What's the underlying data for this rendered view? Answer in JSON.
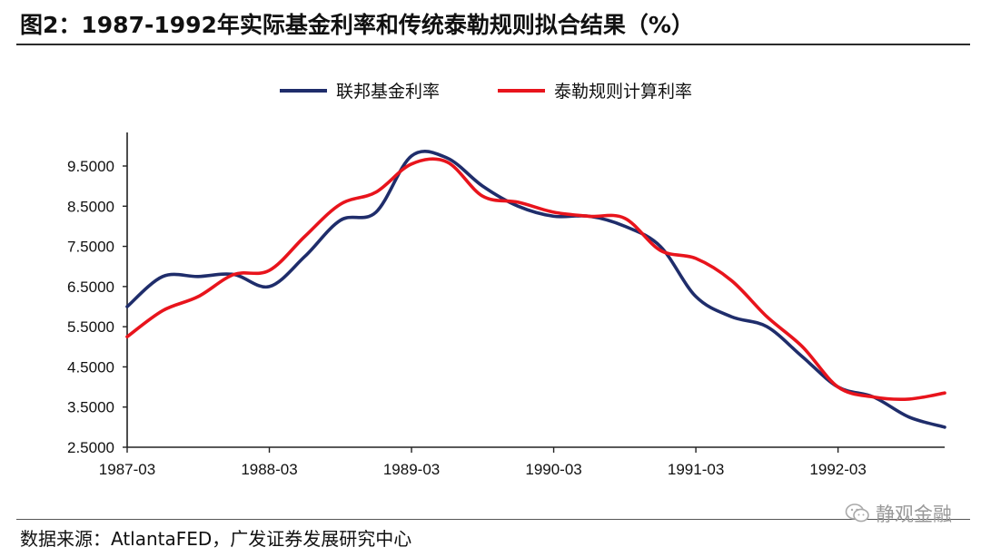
{
  "header": {
    "title": "图2：1987-1992年实际基金利率和传统泰勒规则拟合结果（%）"
  },
  "footer": {
    "source": "数据来源：AtlantaFED，广发证券发展研究中心",
    "watermark": "静观金融",
    "watermark_icon": "wechat-icon"
  },
  "chart_data": {
    "type": "line",
    "title": "",
    "xlabel": "",
    "ylabel": "",
    "x_ticks": [
      "1987-03",
      "1988-03",
      "1989-03",
      "1990-03",
      "1991-03",
      "1992-03"
    ],
    "y_ticks": [
      "2.5000",
      "3.5000",
      "4.5000",
      "5.5000",
      "6.5000",
      "7.5000",
      "8.5000",
      "9.5000"
    ],
    "ylim": [
      2.5,
      10.2
    ],
    "xlim": [
      "1987-03",
      "1992-12"
    ],
    "legend_position": "top",
    "grid": false,
    "x": [
      "1987-03",
      "1987-06",
      "1987-09",
      "1987-12",
      "1988-03",
      "1988-06",
      "1988-09",
      "1988-12",
      "1989-03",
      "1989-06",
      "1989-09",
      "1989-12",
      "1990-03",
      "1990-06",
      "1990-09",
      "1990-12",
      "1991-03",
      "1991-06",
      "1991-09",
      "1991-12",
      "1992-03",
      "1992-06",
      "1992-09",
      "1992-12"
    ],
    "series": [
      {
        "name": "联邦基金利率",
        "color": "#1f2d6b",
        "values": [
          6.0,
          6.75,
          6.75,
          6.8,
          6.5,
          7.25,
          8.15,
          8.35,
          9.75,
          9.7,
          9.0,
          8.5,
          8.25,
          8.25,
          8.0,
          7.5,
          6.25,
          5.75,
          5.5,
          4.75,
          4.0,
          3.75,
          3.25,
          3.0
        ]
      },
      {
        "name": "泰勒规则计算利率",
        "color": "#e8141c",
        "values": [
          5.25,
          5.9,
          6.25,
          6.8,
          6.9,
          7.75,
          8.55,
          8.85,
          9.55,
          9.6,
          8.75,
          8.6,
          8.35,
          8.25,
          8.2,
          7.4,
          7.2,
          6.65,
          5.75,
          5.0,
          4.0,
          3.75,
          3.7,
          3.85
        ]
      }
    ]
  }
}
